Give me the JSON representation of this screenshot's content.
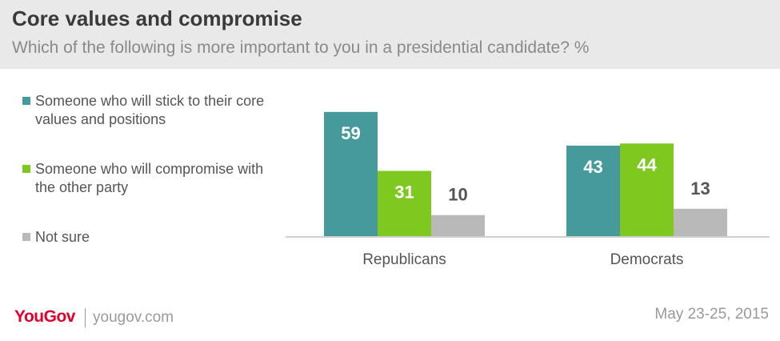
{
  "header": {
    "title": "Core values and compromise",
    "subtitle": "Which of the following is more important to you in a presidential candidate? %"
  },
  "legend": {
    "items": [
      {
        "label": "Someone who will stick to their core values and positions",
        "color": "#469a9c"
      },
      {
        "label": "Someone who will compromise with the other party",
        "color": "#7fc820"
      },
      {
        "label": "Not sure",
        "color": "#b9b9b9"
      }
    ]
  },
  "chart_data": {
    "type": "bar",
    "title": "Core values and compromise",
    "subtitle": "Which of the following is more important to you in a presidential candidate? %",
    "categories": [
      "Republicans",
      "Democrats"
    ],
    "series": [
      {
        "name": "Someone who will stick to their core values and positions",
        "color": "#469a9c",
        "values": [
          59,
          43
        ]
      },
      {
        "name": "Someone who will compromise with the other party",
        "color": "#7fc820",
        "values": [
          31,
          44
        ]
      },
      {
        "name": "Not sure",
        "color": "#b9b9b9",
        "values": [
          10,
          13
        ]
      }
    ],
    "ylim": [
      0,
      100
    ],
    "grid": false,
    "legend_position": "left",
    "data_labels": true
  },
  "footer": {
    "brand": "YouGov",
    "url": "yougov.com",
    "date": "May 23-25, 2015"
  }
}
